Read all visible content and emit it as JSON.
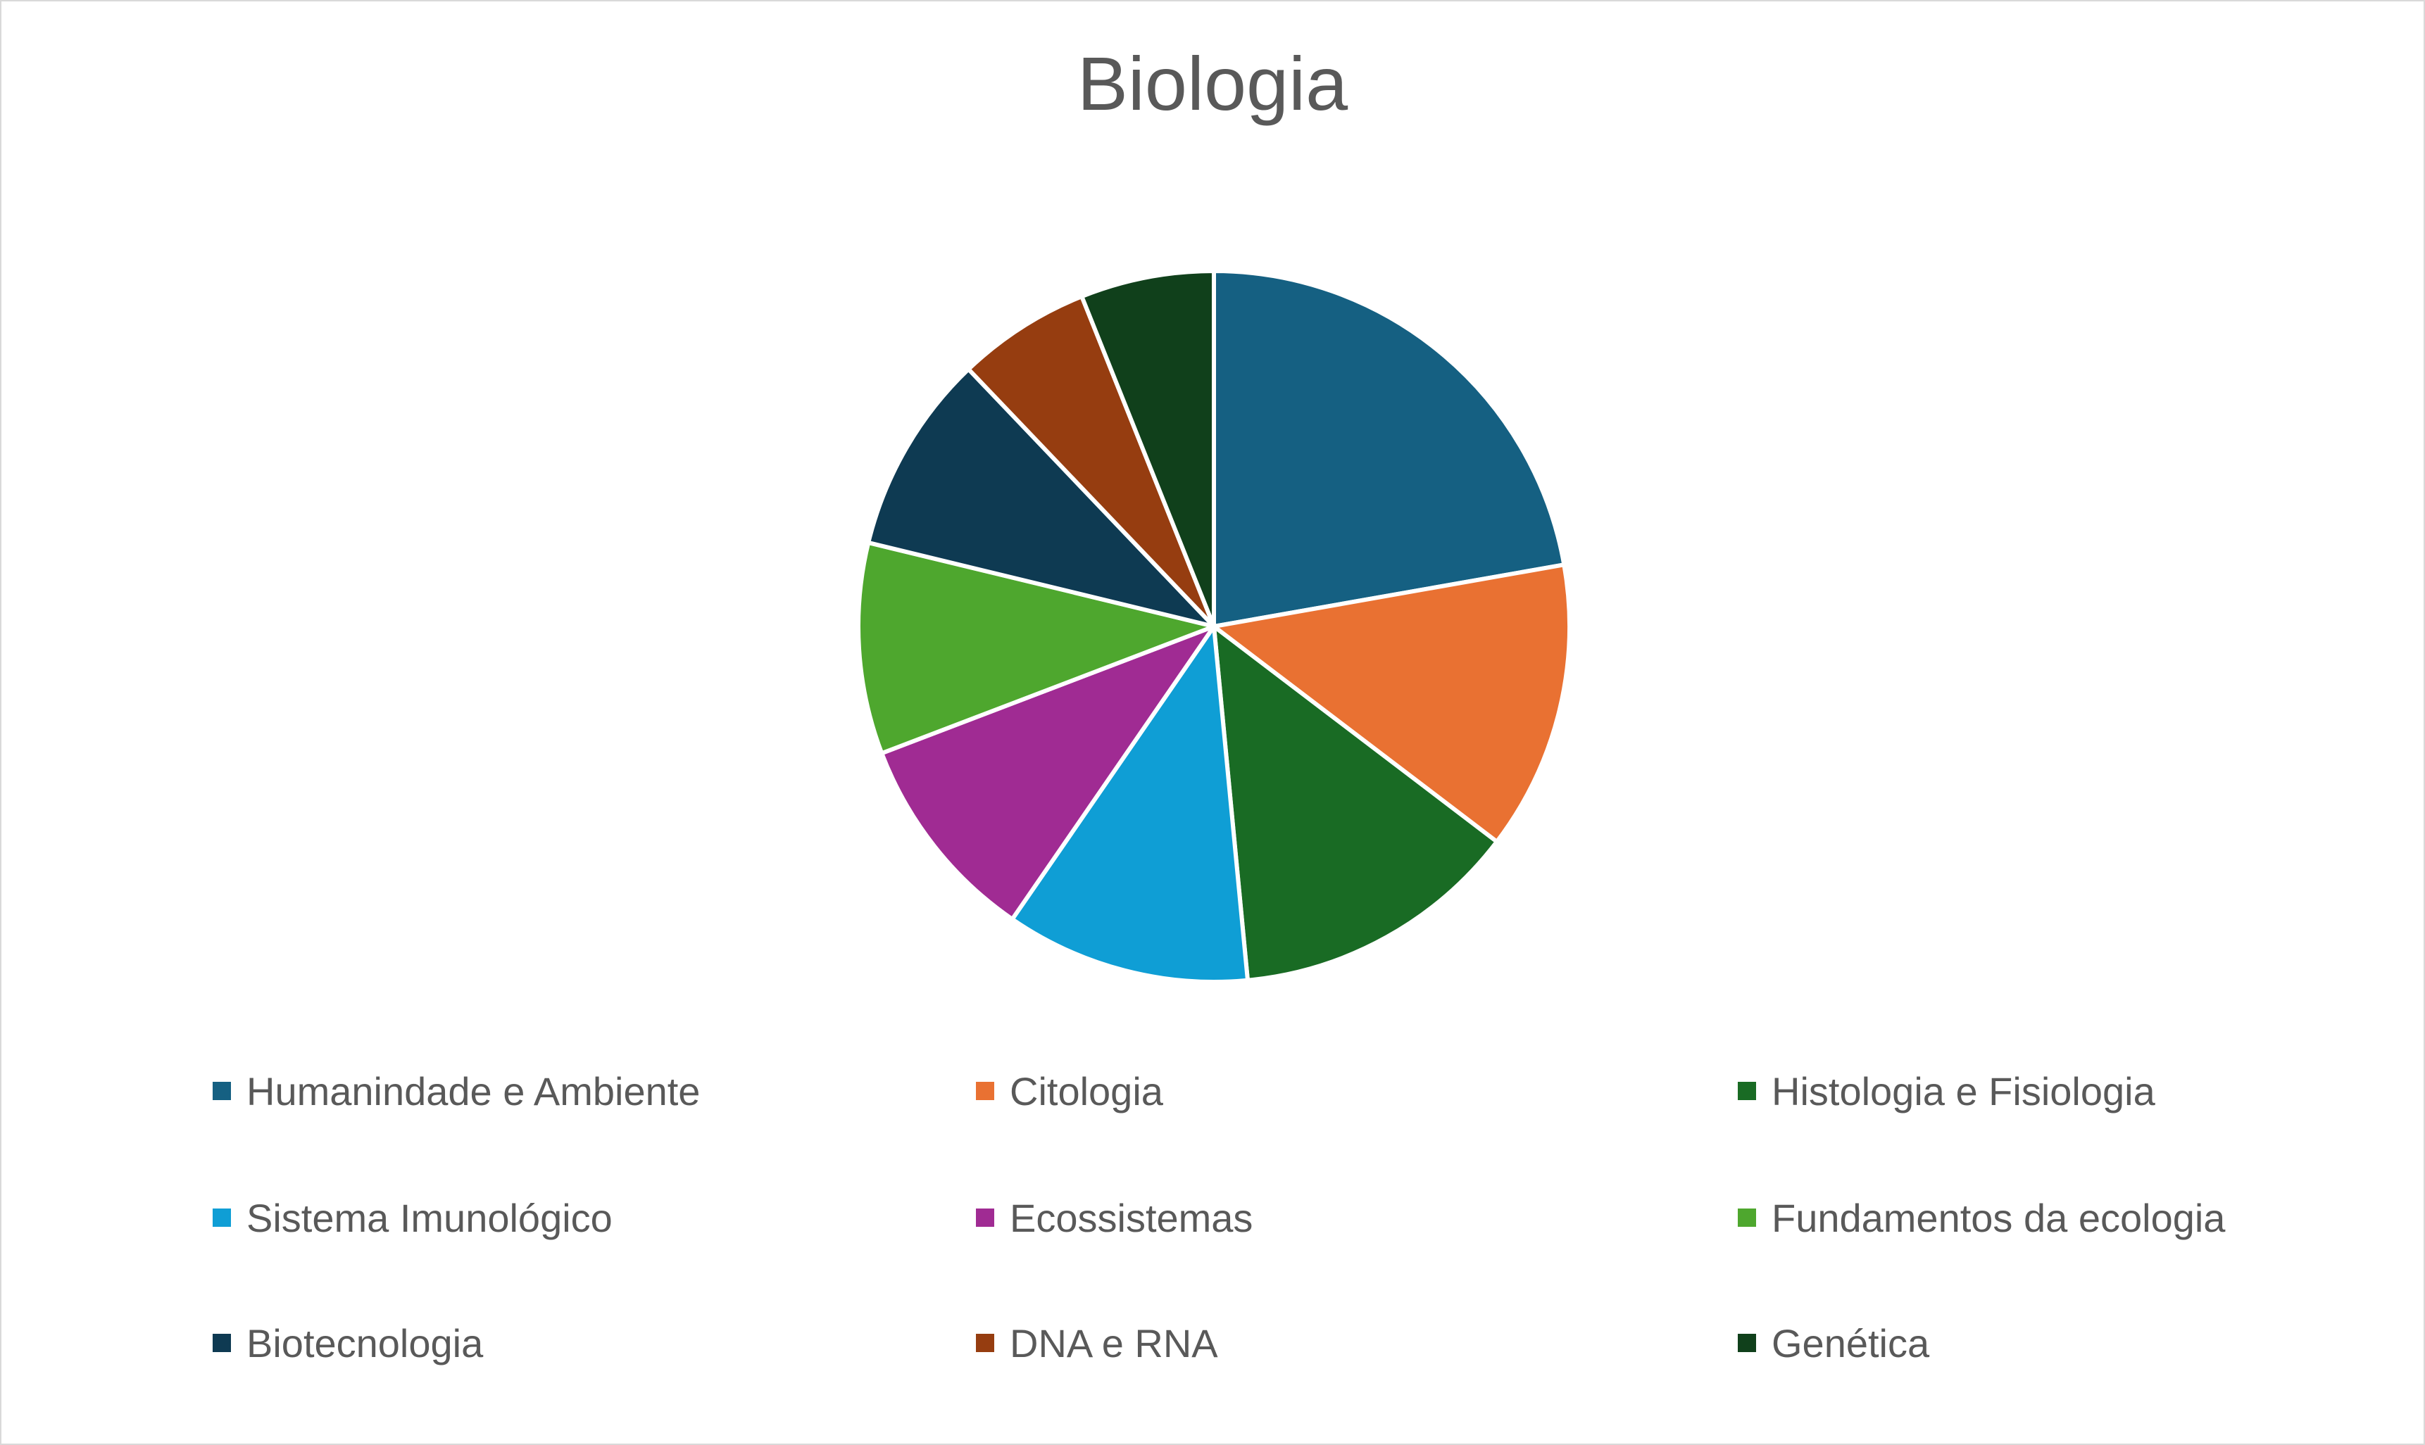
{
  "chart_data": {
    "type": "pie",
    "title": "Biologia",
    "categories": [
      "Humanindade e Ambiente",
      "Citologia",
      "Histologia e Fisiologia",
      "Sistema Imunológico",
      "Ecossistemas",
      "Fundamentos da ecologia",
      "Biotecnologia",
      "DNA e RNA",
      "Genética"
    ],
    "values": [
      22,
      13,
      13,
      11,
      9.5,
      9.5,
      9,
      6,
      6
    ],
    "colors": [
      "#156082",
      "#E97132",
      "#196B24",
      "#0F9ED5",
      "#A02B93",
      "#4EA72E",
      "#0E3A52",
      "#963D10",
      "#10401B"
    ],
    "legend_position": "bottom",
    "start_angle_deg": 0,
    "direction": "clockwise"
  }
}
